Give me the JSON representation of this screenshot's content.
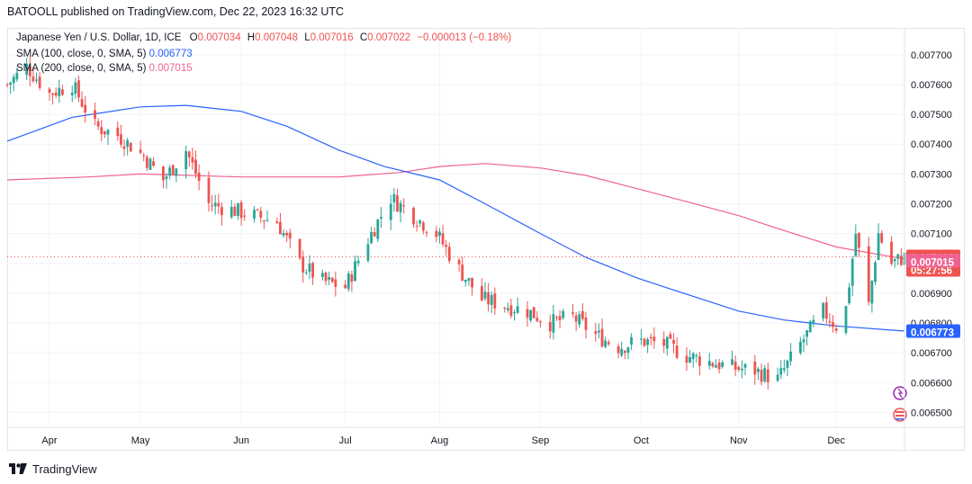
{
  "header": {
    "publisher_line": "BATOOLL published on TradingView.com, Dec 22, 2023 16:32 UTC"
  },
  "legend": {
    "symbol": "Japanese Yen / U.S. Dollar, 1D, ICE",
    "o_label": "O",
    "o_value": "0.007034",
    "h_label": "H",
    "h_value": "0.007048",
    "l_label": "L",
    "l_value": "0.007016",
    "c_label": "C",
    "c_value": "0.007022",
    "change": "−0.000013 (−0.18%)",
    "sma100_label": "SMA (100, close, 0, SMA, 5)",
    "sma100_value": "0.006773",
    "sma200_label": "SMA (200, close, 0, SMA, 5)",
    "sma200_value": "0.007015"
  },
  "footer": {
    "brand": "TradingView"
  },
  "colors": {
    "up": "#26a69a",
    "down": "#ef5350",
    "sma100": "#2962ff",
    "sma200": "#f06292",
    "price_tag": "#ef5350"
  },
  "chart_data": {
    "type": "candlestick",
    "y_ticks": [
      "0.007700",
      "0.007600",
      "0.007500",
      "0.007400",
      "0.007300",
      "0.007200",
      "0.007100",
      "0.007000",
      "0.006900",
      "0.006800",
      "0.006700",
      "0.006600",
      "0.006500"
    ],
    "ylim": [
      0.00645,
      0.00779
    ],
    "x_ticks": [
      "Apr",
      "May",
      "Jun",
      "Jul",
      "Aug",
      "Sep",
      "Oct",
      "Nov",
      "Dec"
    ],
    "x_tick_dates": [
      "2023-04-03",
      "2023-05-01",
      "2023-06-01",
      "2023-07-03",
      "2023-08-01",
      "2023-09-01",
      "2023-10-02",
      "2023-11-01",
      "2023-12-01"
    ],
    "xlim": [
      "2023-03-21",
      "2023-12-22"
    ],
    "grid": true,
    "current_price": "0.007022",
    "countdown": "05:27:56",
    "sma100_tag": "0.006773",
    "sma200_tag": "0.007015",
    "close_anchors": [
      [
        "2023-03-21",
        0.0076
      ],
      [
        "2023-03-27",
        0.00766
      ],
      [
        "2023-04-03",
        0.00757
      ],
      [
        "2023-04-10",
        0.0076
      ],
      [
        "2023-04-17",
        0.00746
      ],
      [
        "2023-04-24",
        0.00743
      ],
      [
        "2023-05-02",
        0.00736
      ],
      [
        "2023-05-08",
        0.00728
      ],
      [
        "2023-05-15",
        0.00738
      ],
      [
        "2023-05-22",
        0.0072
      ],
      [
        "2023-05-29",
        0.00718
      ],
      [
        "2023-06-05",
        0.00716
      ],
      [
        "2023-06-12",
        0.00714
      ],
      [
        "2023-06-19",
        0.007
      ],
      [
        "2023-06-26",
        0.00694
      ],
      [
        "2023-07-03",
        0.00692
      ],
      [
        "2023-07-10",
        0.00708
      ],
      [
        "2023-07-17",
        0.00722
      ],
      [
        "2023-07-24",
        0.00716
      ],
      [
        "2023-07-31",
        0.0071
      ],
      [
        "2023-08-07",
        0.00698
      ],
      [
        "2023-08-14",
        0.00688
      ],
      [
        "2023-08-21",
        0.00686
      ],
      [
        "2023-08-28",
        0.00684
      ],
      [
        "2023-09-04",
        0.0068
      ],
      [
        "2023-09-11",
        0.00682
      ],
      [
        "2023-09-18",
        0.00676
      ],
      [
        "2023-09-25",
        0.00672
      ],
      [
        "2023-10-02",
        0.00674
      ],
      [
        "2023-10-09",
        0.00673
      ],
      [
        "2023-10-16",
        0.00669
      ],
      [
        "2023-10-23",
        0.00667
      ],
      [
        "2023-10-30",
        0.00665
      ],
      [
        "2023-11-06",
        0.00664
      ],
      [
        "2023-11-13",
        0.00661
      ],
      [
        "2023-11-20",
        0.00673
      ],
      [
        "2023-11-27",
        0.00684
      ],
      [
        "2023-12-01",
        0.00679
      ],
      [
        "2023-12-04",
        0.00685
      ],
      [
        "2023-12-07",
        0.0071
      ],
      [
        "2023-12-11",
        0.00686
      ],
      [
        "2023-12-14",
        0.0071
      ],
      [
        "2023-12-18",
        0.007
      ],
      [
        "2023-12-22",
        0.007022
      ]
    ],
    "sma100": [
      [
        "2023-03-21",
        0.00741
      ],
      [
        "2023-04-10",
        0.00749
      ],
      [
        "2023-05-01",
        0.007525
      ],
      [
        "2023-05-15",
        0.00753
      ],
      [
        "2023-06-01",
        0.00751
      ],
      [
        "2023-06-15",
        0.00746
      ],
      [
        "2023-07-01",
        0.00738
      ],
      [
        "2023-07-15",
        0.007325
      ],
      [
        "2023-08-01",
        0.00728
      ],
      [
        "2023-08-15",
        0.0072
      ],
      [
        "2023-09-01",
        0.0071
      ],
      [
        "2023-09-15",
        0.00702
      ],
      [
        "2023-10-01",
        0.00695
      ],
      [
        "2023-10-15",
        0.0069
      ],
      [
        "2023-11-01",
        0.00684
      ],
      [
        "2023-11-15",
        0.00681
      ],
      [
        "2023-12-01",
        0.00679
      ],
      [
        "2023-12-22",
        0.006773
      ]
    ],
    "sma200": [
      [
        "2023-03-21",
        0.00728
      ],
      [
        "2023-04-15",
        0.00729
      ],
      [
        "2023-05-01",
        0.0073
      ],
      [
        "2023-06-01",
        0.00729
      ],
      [
        "2023-07-01",
        0.00729
      ],
      [
        "2023-07-20",
        0.007305
      ],
      [
        "2023-08-01",
        0.007325
      ],
      [
        "2023-08-15",
        0.007335
      ],
      [
        "2023-09-01",
        0.00732
      ],
      [
        "2023-09-15",
        0.007295
      ],
      [
        "2023-10-01",
        0.00725
      ],
      [
        "2023-10-15",
        0.00721
      ],
      [
        "2023-11-01",
        0.00716
      ],
      [
        "2023-11-15",
        0.00711
      ],
      [
        "2023-12-01",
        0.007055
      ],
      [
        "2023-12-22",
        0.007015
      ]
    ]
  }
}
